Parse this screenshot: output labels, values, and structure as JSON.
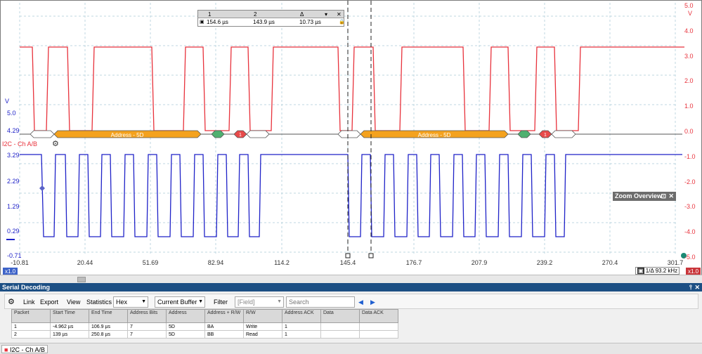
{
  "scope": {
    "left_axis": {
      "unit": "V",
      "ticks": [
        "5.0",
        "4.29",
        "3.29",
        "2.29",
        "1.29",
        "0.29",
        "-0.71"
      ]
    },
    "right_axis": {
      "unit": "V",
      "ticks": [
        "5.0",
        "4.0",
        "3.0",
        "2.0",
        "1.0",
        "0.0",
        "-1.0",
        "-2.0",
        "-3.0",
        "-4.0",
        "-5.0"
      ]
    },
    "x_axis": {
      "unit": "µs",
      "ticks": [
        "-10.81",
        "20.44",
        "51.69",
        "82.94",
        "114.2",
        "145.4",
        "176.7",
        "207.9",
        "239.2",
        "270.4",
        "301.7"
      ]
    },
    "channel_label": "I2C - Ch A/B",
    "decode_labels": [
      "Address - 5D",
      "Address - 5D"
    ],
    "decode_badges": [
      "1",
      "1"
    ],
    "scale_badge_left": "x1.0",
    "scale_badge_right": "x1.0",
    "freq_readout": "93.2 kHz",
    "freq_prefix": "1/Δ",
    "zoom_overview_title": "Zoom Overview",
    "colors": {
      "ch_a": "#e8323c",
      "ch_b": "#1f22c8",
      "address_packet": "#f4a21e",
      "ack": "#4fb070",
      "nack": "#e84a4a",
      "grid": "#bfd7e0"
    }
  },
  "cursor_panel": {
    "col1_header": "1",
    "col2_header": "2",
    "col3_header": "Δ",
    "col1_value": "154.6 µs",
    "col2_value": "143.9 µs",
    "col3_value": "10.73 µs"
  },
  "serial_decoding": {
    "title": "Serial Decoding",
    "toolbar": {
      "link": "Link",
      "export": "Export",
      "view": "View",
      "statistics": "Statistics",
      "format": "Hex",
      "buffer": "Current Buffer",
      "filter": "Filter",
      "field": "[Field]",
      "search_placeholder": "Search"
    },
    "columns": [
      "Packet",
      "Start Time",
      "End Time",
      "Address Bits",
      "Address",
      "Address + R/W",
      "R/W",
      "Address ACK",
      "Data",
      "Data ACK"
    ],
    "rows": [
      [
        "1",
        "-4.962 µs",
        "106.9 µs",
        "7",
        "5D",
        "BA",
        "Write",
        "1",
        "",
        ""
      ],
      [
        "2",
        "139 µs",
        "250.8 µs",
        "7",
        "5D",
        "BB",
        "Read",
        "1",
        "",
        ""
      ]
    ]
  },
  "status_tab": "I2C - Ch A/B"
}
